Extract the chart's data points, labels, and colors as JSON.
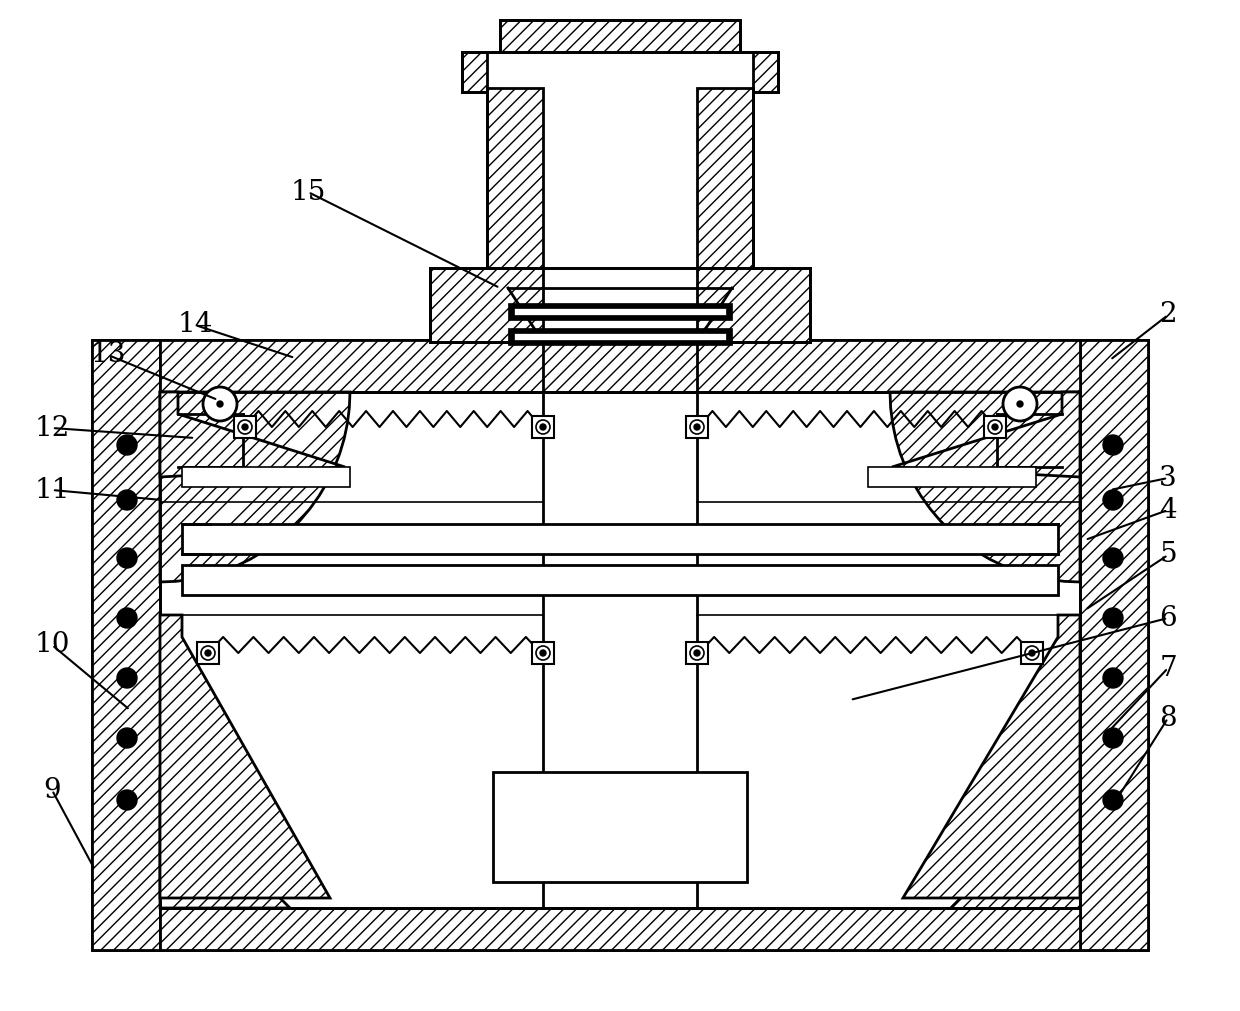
{
  "bg_color": "#ffffff",
  "line_color": "#000000",
  "lw": 2.0,
  "lw_thin": 1.2,
  "labels": [
    [
      "2",
      1168,
      315,
      1110,
      360
    ],
    [
      "3",
      1168,
      478,
      1110,
      490
    ],
    [
      "4",
      1168,
      510,
      1085,
      540
    ],
    [
      "5",
      1168,
      555,
      1085,
      610
    ],
    [
      "6",
      1168,
      618,
      850,
      700
    ],
    [
      "7",
      1168,
      668,
      1110,
      730
    ],
    [
      "8",
      1168,
      718,
      1110,
      810
    ],
    [
      "9",
      52,
      790,
      95,
      870
    ],
    [
      "10",
      52,
      645,
      130,
      710
    ],
    [
      "11",
      52,
      490,
      162,
      500
    ],
    [
      "12",
      52,
      428,
      195,
      438
    ],
    [
      "13",
      108,
      355,
      218,
      400
    ],
    [
      "14",
      195,
      325,
      295,
      358
    ],
    [
      "15",
      308,
      192,
      500,
      288
    ]
  ]
}
